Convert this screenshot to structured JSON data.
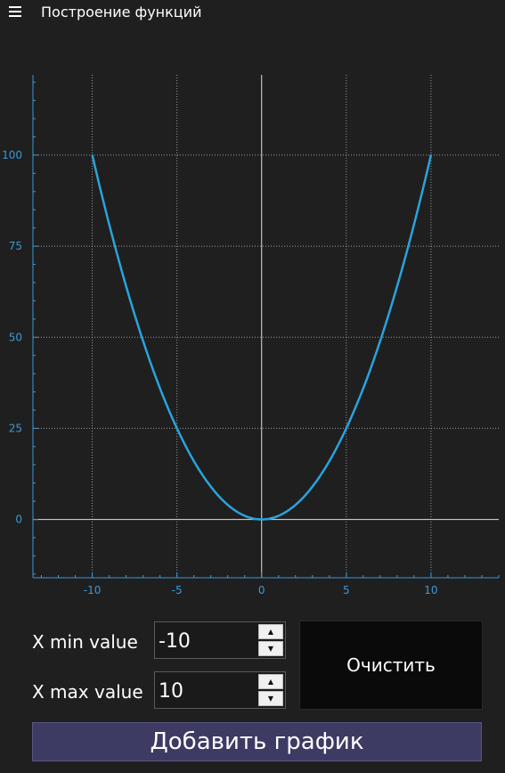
{
  "window": {
    "title": "Построение функций"
  },
  "controls": {
    "xmin_label": "X min value",
    "xmin_value": "-10",
    "xmax_label": "X max value",
    "xmax_value": "10",
    "clear_label": "Очистить",
    "add_label": "Добавить график"
  },
  "colors": {
    "background": "#1f1f1f",
    "curve": "#2aa3dd",
    "axis": "#3a9ad9",
    "add_button": "#3d3a63"
  },
  "chart_data": {
    "type": "line",
    "title": "",
    "xlabel": "",
    "ylabel": "",
    "xlim": [
      -13.5,
      14
    ],
    "ylim": [
      -16,
      122
    ],
    "x_ticks": [
      -10,
      -5,
      0,
      5,
      10
    ],
    "y_ticks": [
      0,
      25,
      50,
      75,
      100
    ],
    "grid": true,
    "series": [
      {
        "x": [
          -10,
          -9,
          -8,
          -7,
          -6,
          -5,
          -4,
          -3,
          -2,
          -1,
          0,
          1,
          2,
          3,
          4,
          5,
          6,
          7,
          8,
          9,
          10
        ],
        "y": [
          100,
          81,
          64,
          49,
          36,
          25,
          16,
          9,
          4,
          1,
          0,
          1,
          4,
          9,
          16,
          25,
          36,
          49,
          64,
          81,
          100
        ]
      }
    ]
  }
}
